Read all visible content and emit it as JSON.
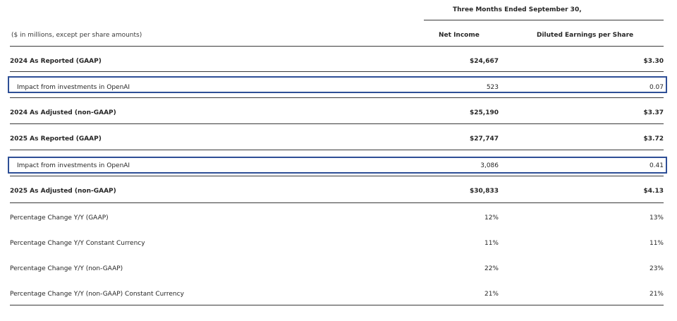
{
  "header": {
    "period": "Three Months Ended September 30,",
    "units": "($ in millions, except per share amounts)",
    "col_net_income": "Net Income",
    "col_eps": "Diluted Earnings per Share"
  },
  "rows": [
    {
      "label": "2024 As Reported (GAAP)",
      "net_income": "$24,667",
      "eps": "$3.30"
    },
    {
      "label": "Impact from investments in OpenAI",
      "net_income": "523",
      "eps": "0.07"
    },
    {
      "label": "2024 As Adjusted (non-GAAP)",
      "net_income": "$25,190",
      "eps": "$3.37"
    },
    {
      "label": "2025 As Reported (GAAP)",
      "net_income": "$27,747",
      "eps": "$3.72"
    },
    {
      "label": "Impact from investments in OpenAI",
      "net_income": "3,086",
      "eps": "0.41"
    },
    {
      "label": "2025 As Adjusted (non-GAAP)",
      "net_income": "$30,833",
      "eps": "$4.13"
    },
    {
      "label": "Percentage Change Y/Y (GAAP)",
      "net_income": "12%",
      "eps": "13%"
    },
    {
      "label": "Percentage Change Y/Y Constant Currency",
      "net_income": "11%",
      "eps": "11%"
    },
    {
      "label": "Percentage Change Y/Y (non-GAAP)",
      "net_income": "22%",
      "eps": "23%"
    },
    {
      "label": "Percentage Change Y/Y (non-GAAP) Constant Currency",
      "net_income": "21%",
      "eps": "21%"
    }
  ],
  "highlight_color": "#2e4f96"
}
